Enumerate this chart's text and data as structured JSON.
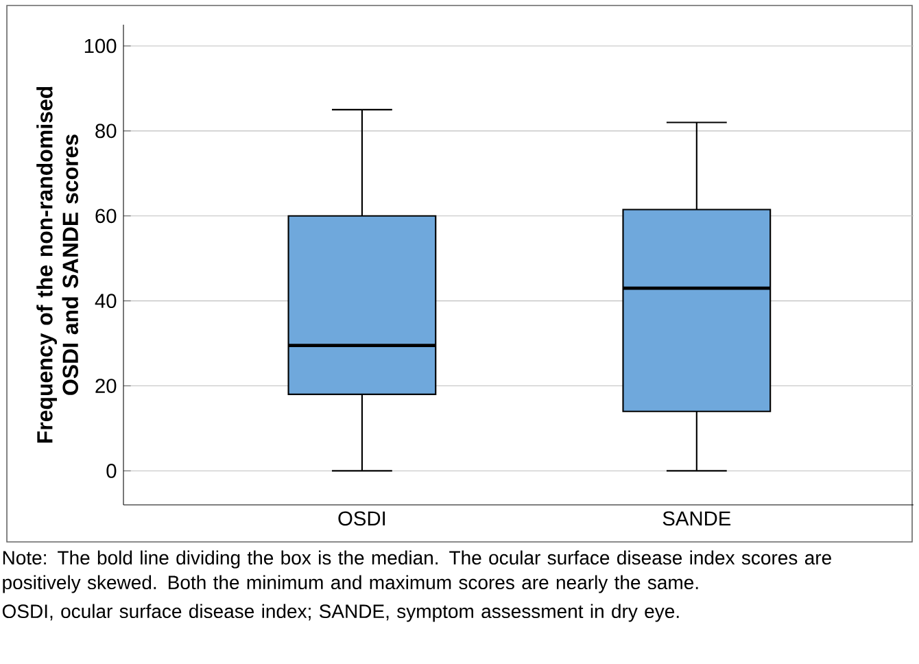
{
  "chart_data": {
    "type": "box",
    "ylabel": "Frequency of the non-randomised OSDI and SANDE scores",
    "categories": [
      "OSDI",
      "SANDE"
    ],
    "boxes": [
      {
        "low": 0,
        "q1": 18,
        "median": 29.5,
        "q3": 60,
        "high": 85
      },
      {
        "low": 0,
        "q1": 14,
        "median": 43,
        "q3": 61.5,
        "high": 82
      }
    ],
    "color": "#6fa8dc",
    "ylim": [
      -8,
      105
    ],
    "yticks": [
      0,
      20,
      40,
      60,
      80,
      100
    ],
    "grid": "y",
    "annotations": [
      "Note: The bold line dividing the box is the median. The ocular surface disease index scores are positively skewed. Both the minimum and maximum scores are nearly the same.",
      "OSDI, ocular surface disease index; SANDE, symptom assessment in dry eye."
    ]
  }
}
